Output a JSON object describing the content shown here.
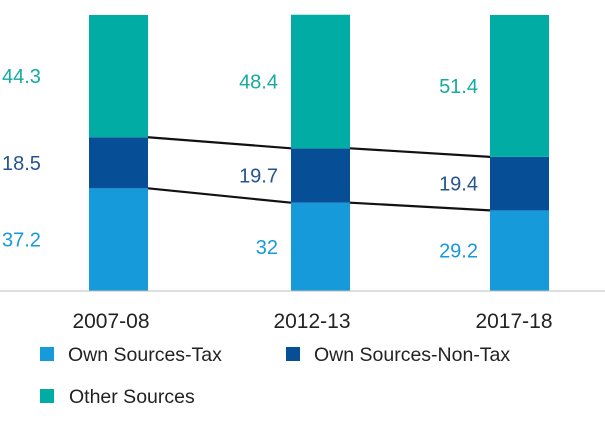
{
  "chart_data": {
    "type": "bar",
    "stacked": true,
    "normalized_percent": true,
    "categories": [
      "2007-08",
      "2012-13",
      "2017-18"
    ],
    "series": [
      {
        "name": "Own Sources-Tax",
        "values": [
          37.2,
          32,
          29.2
        ],
        "labels": [
          "37.2",
          "32",
          "29.2"
        ],
        "color": "#179ad9",
        "label_color": "#179ad9"
      },
      {
        "name": "Own Sources-Non-Tax",
        "values": [
          18.5,
          19.7,
          19.4
        ],
        "labels": [
          "18.5",
          "19.7",
          "19.4"
        ],
        "color": "#064f96",
        "label_color": "#24558f"
      },
      {
        "name": "Other Sources",
        "values": [
          44.3,
          48.4,
          51.4
        ],
        "labels": [
          "44.3",
          "48.4",
          "51.4"
        ],
        "color": "#00aca4",
        "label_color": "#16aaa2"
      }
    ],
    "connector_lines": true,
    "title": "",
    "xlabel": "",
    "ylabel": "",
    "ylim": [
      0,
      100
    ],
    "grid": false,
    "legend": "bottom"
  }
}
